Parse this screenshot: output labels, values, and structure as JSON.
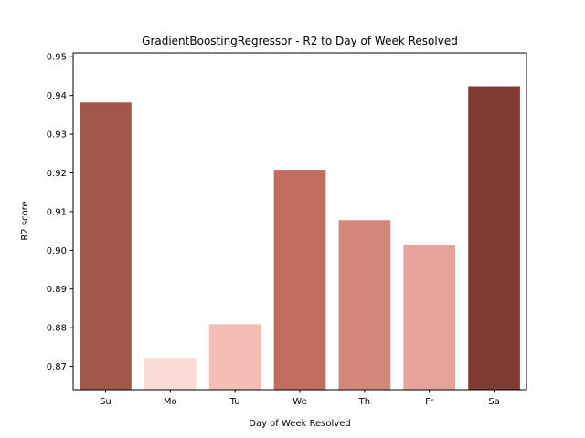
{
  "chart_data": {
    "type": "bar",
    "title": "GradientBoostingRegressor - R2 to Day of Week Resolved",
    "xlabel": "Day of Week Resolved",
    "ylabel": "R2 score",
    "categories": [
      "Su",
      "Mo",
      "Tu",
      "We",
      "Th",
      "Fr",
      "Sa"
    ],
    "values": [
      0.9382,
      0.8722,
      0.8809,
      0.9208,
      0.9078,
      0.9013,
      0.9424
    ],
    "colors": [
      "#a3574a",
      "#fadcd6",
      "#f4bdb5",
      "#c06c5f",
      "#d4887b",
      "#e6a399",
      "#7f3a32"
    ],
    "ylim": [
      0.864,
      0.951
    ],
    "yticks": [
      0.87,
      0.88,
      0.89,
      0.9,
      0.91,
      0.92,
      0.93,
      0.94,
      0.95
    ],
    "ytick_labels": [
      "0.87",
      "0.88",
      "0.89",
      "0.90",
      "0.91",
      "0.92",
      "0.93",
      "0.94",
      "0.95"
    ],
    "grid": false,
    "legend": "none"
  }
}
